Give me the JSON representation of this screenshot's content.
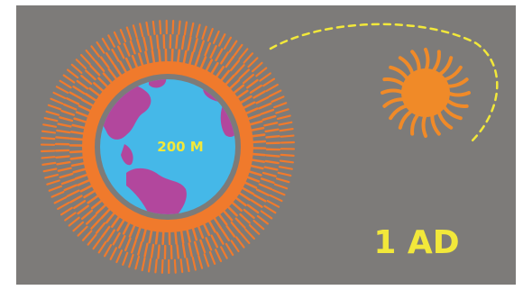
{
  "illustration": {
    "earth_label": "200 M",
    "year_label": "1 AD"
  },
  "colors": {
    "background": "#7d7b79",
    "frame": "#ffffff",
    "halo": "#f07a2c",
    "ocean": "#45b8e8",
    "land": "#b2479d",
    "sun": "#f08a28",
    "text": "#f2e83a",
    "orbit_path": "#f2e83a"
  },
  "icons": [
    "earth-icon",
    "sun-icon",
    "orbit-path-icon"
  ]
}
